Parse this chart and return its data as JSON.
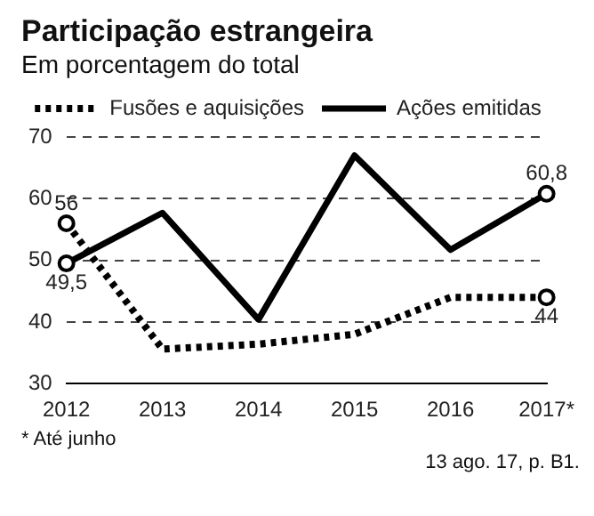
{
  "chart_data": {
    "type": "line",
    "title": "Participação estrangeira",
    "subtitle": "Em porcentagem do total",
    "categories": [
      "2012",
      "2013",
      "2014",
      "2015",
      "2016",
      "2017*"
    ],
    "series": [
      {
        "name": "Fusões e aquisições",
        "color": "#000000",
        "line_style": "dotted",
        "values": [
          56,
          35.6,
          36.4,
          38,
          44,
          44
        ],
        "value_labels": [
          "56",
          null,
          null,
          null,
          null,
          "44"
        ]
      },
      {
        "name": "Ações emitidas",
        "color": "#000000",
        "line_style": "solid",
        "values": [
          49.5,
          57.7,
          40.4,
          67,
          51.7,
          60.8
        ],
        "value_labels": [
          "49,5",
          null,
          null,
          null,
          null,
          "60,8"
        ]
      }
    ],
    "ylim": [
      30,
      70
    ],
    "yticks": [
      30,
      40,
      50,
      60,
      70
    ],
    "grid": "y",
    "legend": "top",
    "annotations": [
      "* Até junho",
      "13 ago. 17, p. B1."
    ]
  }
}
